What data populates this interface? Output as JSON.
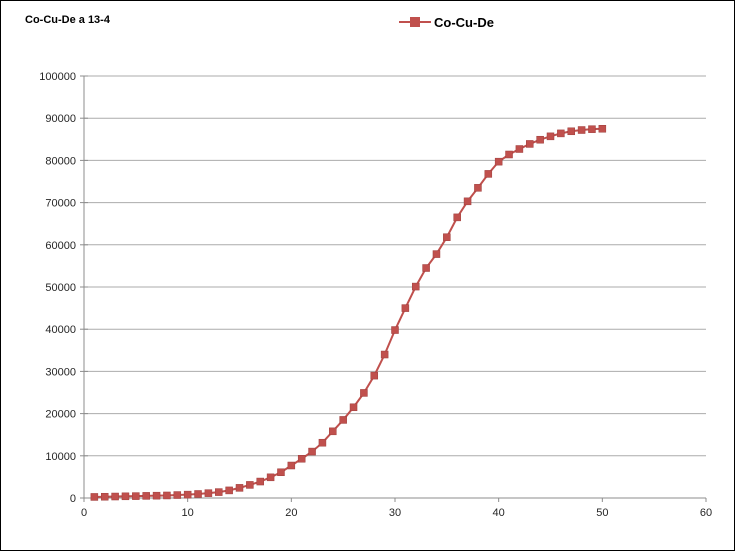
{
  "title": "Co-Cu-De a 13-4",
  "legend": {
    "label": "Co-Cu-De",
    "marker_color": "#C0504D"
  },
  "colors": {
    "series": "#C0504D",
    "series_border": "#9e3d3b",
    "gridline": "#ababab",
    "axis": "#8c8c8c",
    "tick_label": "#262626",
    "background": "#ffffff"
  },
  "chart_data": {
    "type": "line",
    "title": "Co-Cu-De a 13-4",
    "xlabel": "",
    "ylabel": "",
    "xlim": [
      0,
      60
    ],
    "ylim": [
      0,
      100000
    ],
    "x_ticks": [
      0,
      10,
      20,
      30,
      40,
      50,
      60
    ],
    "y_ticks": [
      0,
      10000,
      20000,
      30000,
      40000,
      50000,
      60000,
      70000,
      80000,
      90000,
      100000
    ],
    "grid": "horizontal",
    "legend_position": "top-center",
    "series": [
      {
        "name": "Co-Cu-De",
        "color": "#C0504D",
        "marker": "square",
        "x": [
          1,
          2,
          3,
          4,
          5,
          6,
          7,
          8,
          9,
          10,
          11,
          12,
          13,
          14,
          15,
          16,
          17,
          18,
          19,
          20,
          21,
          22,
          23,
          24,
          25,
          26,
          27,
          28,
          29,
          30,
          31,
          32,
          33,
          34,
          35,
          36,
          37,
          38,
          39,
          40,
          41,
          42,
          43,
          44,
          45,
          46,
          47,
          48,
          49,
          50
        ],
        "values": [
          250,
          300,
          350,
          400,
          450,
          500,
          550,
          600,
          700,
          800,
          950,
          1150,
          1400,
          1800,
          2400,
          3100,
          3900,
          4900,
          6100,
          7700,
          9300,
          11000,
          13100,
          15800,
          18500,
          21500,
          24900,
          29000,
          34000,
          39800,
          45000,
          50100,
          54500,
          57800,
          61800,
          66500,
          70300,
          73500,
          76800,
          79700,
          81400,
          82700,
          83900,
          84900,
          85700,
          86400,
          86900,
          87200,
          87400,
          87500
        ]
      }
    ]
  }
}
